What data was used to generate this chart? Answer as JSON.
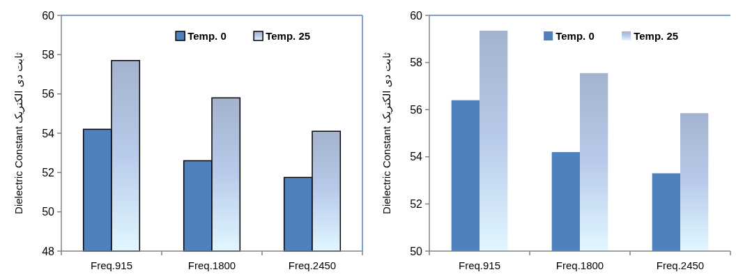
{
  "chart_data": [
    {
      "type": "bar",
      "ylabel": "Dielectric Constant  ثابت دی الکتریک",
      "categories": [
        "Freq.915",
        "Freq.1800",
        "Freq.2450"
      ],
      "ylim": [
        48,
        60
      ],
      "yticks": [
        48,
        50,
        52,
        54,
        56,
        58,
        60
      ],
      "grid": false,
      "legend": "top right",
      "series": [
        {
          "name": "Temp. 0",
          "color": "#4f81bd",
          "values": [
            54.2,
            52.6,
            51.75
          ]
        },
        {
          "name": "Temp. 25",
          "color": "#b9cbea",
          "values": [
            57.7,
            55.8,
            54.1
          ]
        }
      ]
    },
    {
      "type": "bar",
      "ylabel": "Dielectric Constant  ثابت دی الکتریک",
      "categories": [
        "Freq.915",
        "Freq.1800",
        "Freq.2450"
      ],
      "ylim": [
        50,
        60
      ],
      "yticks": [
        50,
        52,
        54,
        56,
        58,
        60
      ],
      "grid": false,
      "legend": "top right",
      "series": [
        {
          "name": "Temp. 0",
          "color": "#4f81bd",
          "values": [
            56.4,
            54.2,
            53.3
          ]
        },
        {
          "name": "Temp. 25",
          "color": "#b9cbea",
          "values": [
            59.35,
            57.55,
            55.85
          ]
        }
      ]
    }
  ]
}
